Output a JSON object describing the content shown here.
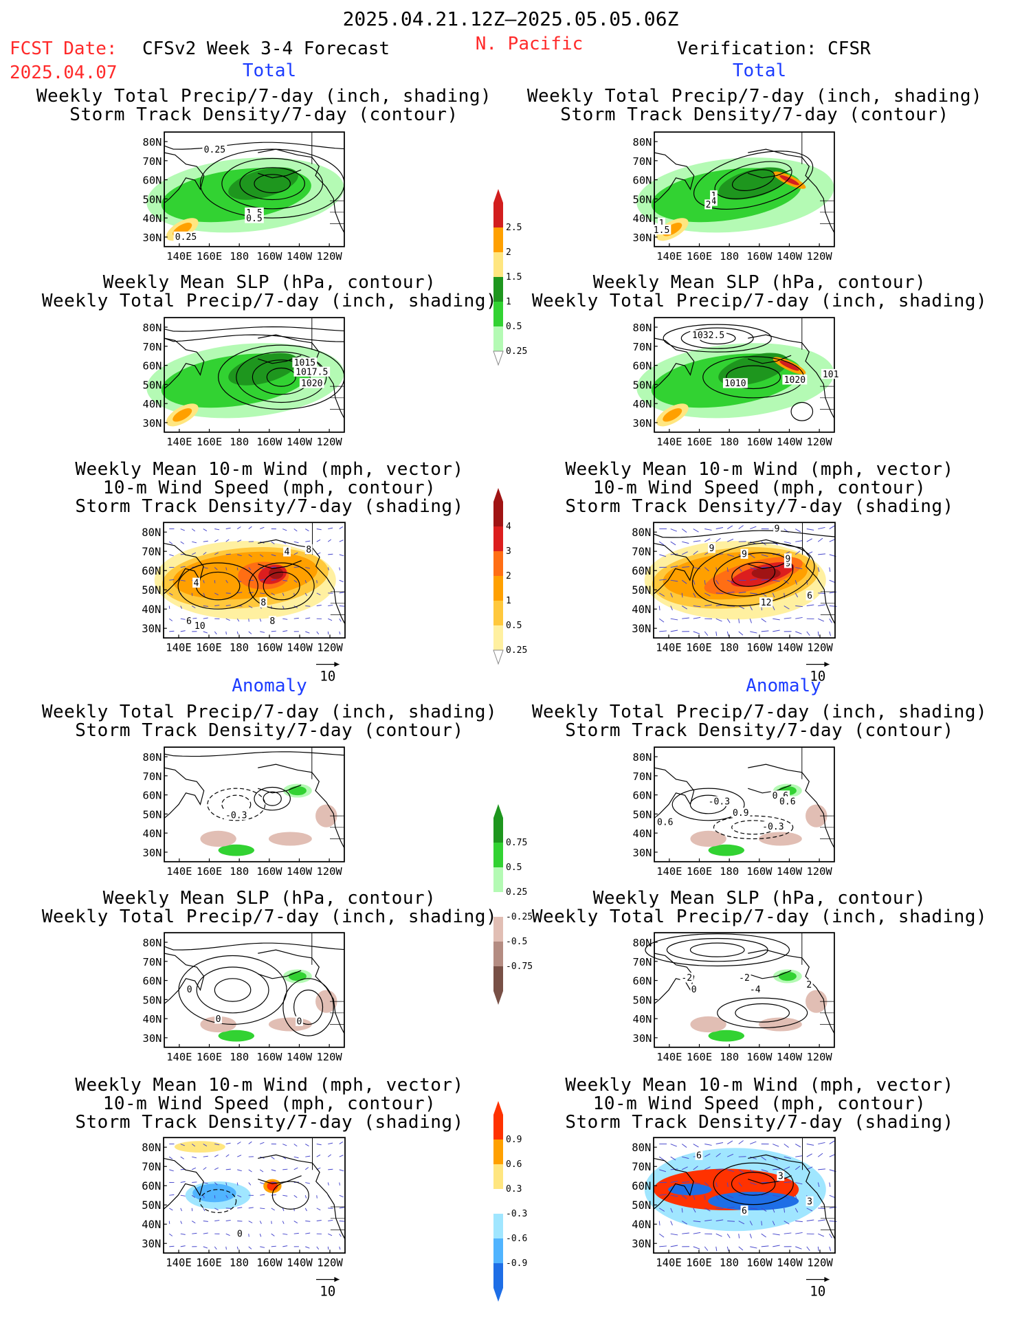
{
  "header": {
    "date_range": "2025.04.21.12Z–2025.05.05.06Z",
    "fcst_label": "FCST Date:",
    "fcst_date": "2025.04.07",
    "model_title": "CFSv2 Week 3-4 Forecast",
    "region": "N. Pacific",
    "verification": "Verification: CFSR"
  },
  "sections": {
    "total": "Total",
    "anomaly": "Anomaly"
  },
  "panel_titles": {
    "precip_storm": [
      "Weekly Total Precip/7-day (inch, shading)",
      "Storm Track Density/7-day (contour)"
    ],
    "slp_precip": [
      "Weekly Mean SLP (hPa, contour)",
      "Weekly Total Precip/7-day (inch, shading)"
    ],
    "wind_storm": [
      "Weekly Mean 10-m Wind (mph, vector)",
      "10-m Wind Speed (mph, contour)",
      "Storm Track Density/7-day (shading)"
    ]
  },
  "axes": {
    "lat_labels": [
      "80N",
      "70N",
      "60N",
      "50N",
      "40N",
      "30N"
    ],
    "lon_labels": [
      "140E",
      "160E",
      "180",
      "160W",
      "140W",
      "120W"
    ]
  },
  "vector_reference": "10",
  "contour_labels": {
    "fp1": [
      "0.25",
      "0.25",
      "1.5",
      "0.5"
    ],
    "vp1": [
      "1",
      "4",
      "2",
      "1",
      "1.5"
    ],
    "fp2": [
      "1015",
      "1017.5",
      "1020"
    ],
    "vp2": [
      "1032.5",
      "1010",
      "1020",
      "101"
    ],
    "fp3": [
      "4",
      "4",
      "8",
      "8",
      "8",
      "10",
      "6"
    ],
    "vp3": [
      "9",
      "9",
      "9",
      "9",
      "12",
      "6",
      "9"
    ],
    "fa1": [
      "-0.3"
    ],
    "va1": [
      "0.6",
      "-0.3",
      "0.9",
      "-0.3",
      "0.6",
      "0.6"
    ],
    "fa2": [
      "0",
      "0",
      "0"
    ],
    "va2": [
      "-2",
      "0",
      "-2",
      "-4",
      "2"
    ],
    "fa3": [
      "0"
    ],
    "va3": [
      "6",
      "3",
      "6",
      "3"
    ]
  },
  "colorbars": {
    "precip_total": [
      "2.5",
      "2",
      "1.5",
      "1",
      "0.5",
      "0.25"
    ],
    "storm_total": [
      "4",
      "3",
      "2",
      "1",
      "0.5",
      "0.25"
    ],
    "precip_anom": [
      "0.75",
      "0.5",
      "0.25",
      "-0.25",
      "-0.5",
      "-0.75"
    ],
    "storm_anom": [
      "0.9",
      "0.6",
      "0.3",
      "-0.3",
      "-0.6",
      "-0.9"
    ]
  },
  "colors": {
    "precip_total": [
      "#d21e1e",
      "#ffa000",
      "#ffe680",
      "#1e961e",
      "#32d232",
      "#b4fab4"
    ],
    "storm_total": [
      "#a01414",
      "#dc1e1e",
      "#ff6e14",
      "#ffa000",
      "#ffc83c",
      "#fff0a0"
    ],
    "precip_anom": [
      "#1e961e",
      "#32d232",
      "#b4fab4",
      "#e1beb4",
      "#b48c82",
      "#785046"
    ],
    "storm_anom": [
      "#ff3200",
      "#ffa000",
      "#ffe680",
      "#a0e6ff",
      "#50b4ff",
      "#1e6ee6"
    ],
    "land_line": "#000000",
    "vector": "#4444cc",
    "red_text": "#ff2a2a",
    "blue_text": "#1c3cff"
  },
  "chart_data": [
    {
      "type": "heatmap",
      "id": "fp1",
      "title": "Weekly Total Precip/7-day (inch, shading) / Storm Track Density/7-day (contour)",
      "column": "CFSv2 Week 3-4 Forecast",
      "section": "Total",
      "lon_range": [
        "140E",
        "120W"
      ],
      "lat_range": [
        "25N",
        "85N"
      ],
      "contour_labels": [
        0.25,
        0.25,
        1.5,
        0.5
      ]
    },
    {
      "type": "heatmap",
      "id": "vp1",
      "title": "Weekly Total Precip/7-day (inch, shading) / Storm Track Density/7-day (contour)",
      "column": "Verification: CFSR",
      "section": "Total",
      "contour_labels": [
        1,
        4,
        2,
        1,
        1.5
      ]
    },
    {
      "type": "heatmap",
      "id": "fp2",
      "title": "Weekly Mean SLP (hPa, contour) / Weekly Total Precip/7-day (inch, shading)",
      "column": "CFSv2 Week 3-4 Forecast",
      "section": "Total",
      "contour_labels": [
        1015,
        1017.5,
        1020
      ]
    },
    {
      "type": "heatmap",
      "id": "vp2",
      "title": "Weekly Mean SLP (hPa, contour) / Weekly Total Precip/7-day (inch, shading)",
      "column": "Verification: CFSR",
      "section": "Total",
      "contour_labels": [
        1032.5,
        1010,
        1020,
        101
      ]
    },
    {
      "type": "heatmap",
      "id": "fp3",
      "title": "Weekly Mean 10-m Wind / 10-m Wind Speed / Storm Track Density",
      "column": "CFSv2 Week 3-4 Forecast",
      "section": "Total",
      "contour_labels": [
        4,
        4,
        8,
        8,
        8,
        10,
        6
      ],
      "vector_reference": 10
    },
    {
      "type": "heatmap",
      "id": "vp3",
      "title": "Weekly Mean 10-m Wind / 10-m Wind Speed / Storm Track Density",
      "column": "Verification: CFSR",
      "section": "Total",
      "contour_labels": [
        9,
        9,
        9,
        9,
        12,
        6,
        9
      ],
      "vector_reference": 10
    },
    {
      "type": "heatmap",
      "id": "fa1",
      "title": "Weekly Total Precip/7-day (inch, shading) / Storm Track Density/7-day (contour)",
      "column": "CFSv2 Week 3-4 Forecast",
      "section": "Anomaly",
      "contour_labels": [
        -0.3
      ]
    },
    {
      "type": "heatmap",
      "id": "va1",
      "title": "Weekly Total Precip/7-day (inch, shading) / Storm Track Density/7-day (contour)",
      "column": "Verification: CFSR",
      "section": "Anomaly",
      "contour_labels": [
        0.6,
        -0.3,
        0.9,
        -0.3,
        0.6,
        0.6
      ]
    },
    {
      "type": "heatmap",
      "id": "fa2",
      "title": "Weekly Mean SLP (hPa, contour) / Weekly Total Precip/7-day (inch, shading)",
      "column": "CFSv2 Week 3-4 Forecast",
      "section": "Anomaly",
      "contour_labels": [
        0,
        0,
        0
      ]
    },
    {
      "type": "heatmap",
      "id": "va2",
      "title": "Weekly Mean SLP (hPa, contour) / Weekly Total Precip/7-day (inch, shading)",
      "column": "Verification: CFSR",
      "section": "Anomaly",
      "contour_labels": [
        -2,
        0,
        -2,
        -4,
        2
      ]
    },
    {
      "type": "heatmap",
      "id": "fa3",
      "title": "Weekly Mean 10-m Wind / 10-m Wind Speed / Storm Track Density",
      "column": "CFSv2 Week 3-4 Forecast",
      "section": "Anomaly",
      "contour_labels": [
        0
      ],
      "vector_reference": 10
    },
    {
      "type": "heatmap",
      "id": "va3",
      "title": "Weekly Mean 10-m Wind / 10-m Wind Speed / Storm Track Density",
      "column": "Verification: CFSR",
      "section": "Anomaly",
      "contour_labels": [
        6,
        3,
        6,
        3
      ],
      "vector_reference": 10
    }
  ]
}
